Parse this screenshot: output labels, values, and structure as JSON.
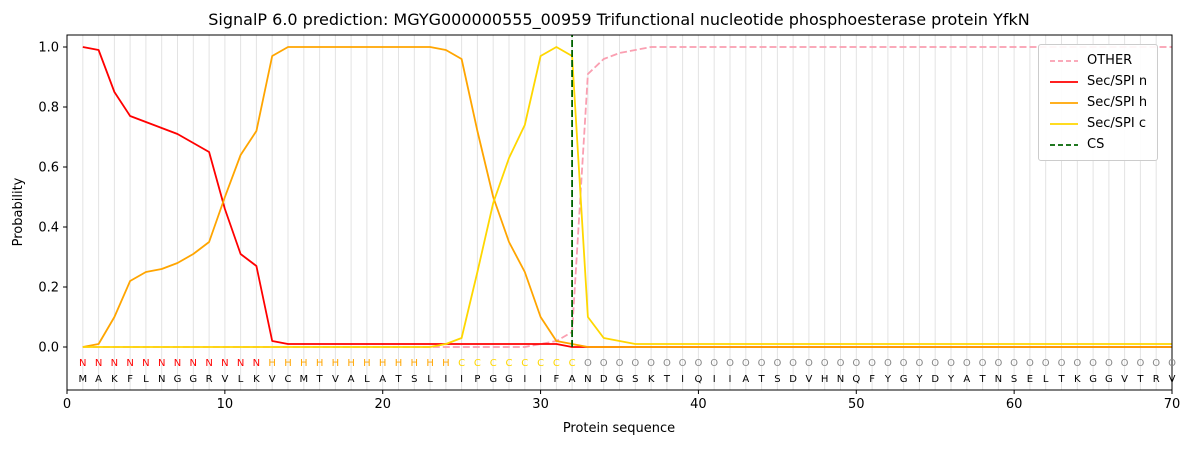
{
  "chart_data": {
    "type": "line",
    "title": "SignalP 6.0 prediction: MGYG000000555_00959 Trifunctional nucleotide phosphoesterase protein YfkN",
    "xlabel": "Protein sequence",
    "ylabel": "Probability",
    "xlim": [
      0,
      70
    ],
    "ylim": [
      -0.15,
      1.04
    ],
    "xticks": [
      0,
      10,
      20,
      30,
      40,
      50,
      60,
      70
    ],
    "yticks": [
      "0.0",
      "0.2",
      "0.4",
      "0.6",
      "0.8",
      "1.0"
    ],
    "grid": "vertical line at every residue position",
    "gridline_color": "#e3e3e3",
    "legend_position": "upper right",
    "x": [
      1,
      2,
      3,
      4,
      5,
      6,
      7,
      8,
      9,
      10,
      11,
      12,
      13,
      14,
      15,
      16,
      17,
      18,
      19,
      20,
      21,
      22,
      23,
      24,
      25,
      26,
      27,
      28,
      29,
      30,
      31,
      32,
      33,
      34,
      35,
      36,
      37,
      38,
      39,
      40,
      41,
      42,
      43,
      44,
      45,
      46,
      47,
      48,
      49,
      50,
      51,
      52,
      53,
      54,
      55,
      56,
      57,
      58,
      59,
      60,
      61,
      62,
      63,
      64,
      65,
      66,
      67,
      68,
      69,
      70
    ],
    "series": [
      {
        "name": "OTHER",
        "color": "#fa9fb1",
        "dash": true,
        "values": [
          0,
          0,
          0,
          0,
          0,
          0,
          0,
          0,
          0,
          0,
          0,
          0,
          0,
          0,
          0,
          0,
          0,
          0,
          0,
          0,
          0,
          0,
          0,
          0,
          0,
          0,
          0,
          0,
          0,
          0.01,
          0.02,
          0.05,
          0.91,
          0.96,
          0.98,
          0.99,
          1,
          1,
          1,
          1,
          1,
          1,
          1,
          1,
          1,
          1,
          1,
          1,
          1,
          1,
          1,
          1,
          1,
          1,
          1,
          1,
          1,
          1,
          1,
          1,
          1,
          1,
          1,
          1,
          1,
          1,
          1,
          1,
          1,
          1
        ]
      },
      {
        "name": "Sec/SPI n",
        "color": "#ff0000",
        "dash": false,
        "values": [
          1.0,
          0.99,
          0.85,
          0.77,
          0.75,
          0.73,
          0.71,
          0.68,
          0.65,
          0.46,
          0.31,
          0.27,
          0.02,
          0.01,
          0.01,
          0.01,
          0.01,
          0.01,
          0.01,
          0.01,
          0.01,
          0.01,
          0.01,
          0.01,
          0.01,
          0.01,
          0.01,
          0.01,
          0.01,
          0.01,
          0.01,
          0,
          0,
          0,
          0,
          0,
          0,
          0,
          0,
          0,
          0,
          0,
          0,
          0,
          0,
          0,
          0,
          0,
          0,
          0,
          0,
          0,
          0,
          0,
          0,
          0,
          0,
          0,
          0,
          0,
          0,
          0,
          0,
          0,
          0,
          0,
          0,
          0,
          0,
          0
        ]
      },
      {
        "name": "Sec/SPI h",
        "color": "#ffa500",
        "dash": false,
        "values": [
          0,
          0.01,
          0.1,
          0.22,
          0.25,
          0.26,
          0.28,
          0.31,
          0.35,
          0.5,
          0.64,
          0.72,
          0.97,
          1,
          1,
          1,
          1,
          1,
          1,
          1,
          1,
          1,
          1,
          0.99,
          0.96,
          0.72,
          0.5,
          0.35,
          0.25,
          0.1,
          0.02,
          0.01,
          0,
          0,
          0,
          0,
          0,
          0,
          0,
          0,
          0,
          0,
          0,
          0,
          0,
          0,
          0,
          0,
          0,
          0,
          0,
          0,
          0,
          0,
          0,
          0,
          0,
          0,
          0,
          0,
          0,
          0,
          0,
          0,
          0,
          0,
          0,
          0,
          0,
          0
        ]
      },
      {
        "name": "Sec/SPI c",
        "color": "#ffd700",
        "dash": false,
        "values": [
          0,
          0,
          0,
          0,
          0,
          0,
          0,
          0,
          0,
          0,
          0,
          0,
          0,
          0,
          0,
          0,
          0,
          0,
          0,
          0,
          0,
          0,
          0,
          0.01,
          0.03,
          0.25,
          0.48,
          0.63,
          0.74,
          0.97,
          1.0,
          0.97,
          0.1,
          0.03,
          0.02,
          0.01,
          0.01,
          0.01,
          0.01,
          0.01,
          0.01,
          0.01,
          0.01,
          0.01,
          0.01,
          0.01,
          0.01,
          0.01,
          0.01,
          0.01,
          0.01,
          0.01,
          0.01,
          0.01,
          0.01,
          0.01,
          0.01,
          0.01,
          0.01,
          0.01,
          0.01,
          0.01,
          0.01,
          0.01,
          0.01,
          0.01,
          0.01,
          0.01,
          0.01,
          0.01
        ]
      }
    ],
    "cs_marker": {
      "name": "CS",
      "x": 32,
      "color": "#006400",
      "dash": true
    },
    "sequence": "MAKFLNGGRVLKVCMTVALATSLIIPGGIIFANDGSKTIQIIATSDVHNQFYGYDYATNSELTKGGVTRV",
    "regions": "NNNNNNNNNNNNHHHHHHHHHHHHCCCCCCCCOOOOOOOOOOOOOOOOOOOOOOOOOOOOOOOOOOOOOO",
    "region_colors": {
      "N": "#ff0000",
      "H": "#ffa500",
      "C": "#ffd700",
      "O": "#8a8a8a"
    },
    "sequence_color": "#000000"
  }
}
